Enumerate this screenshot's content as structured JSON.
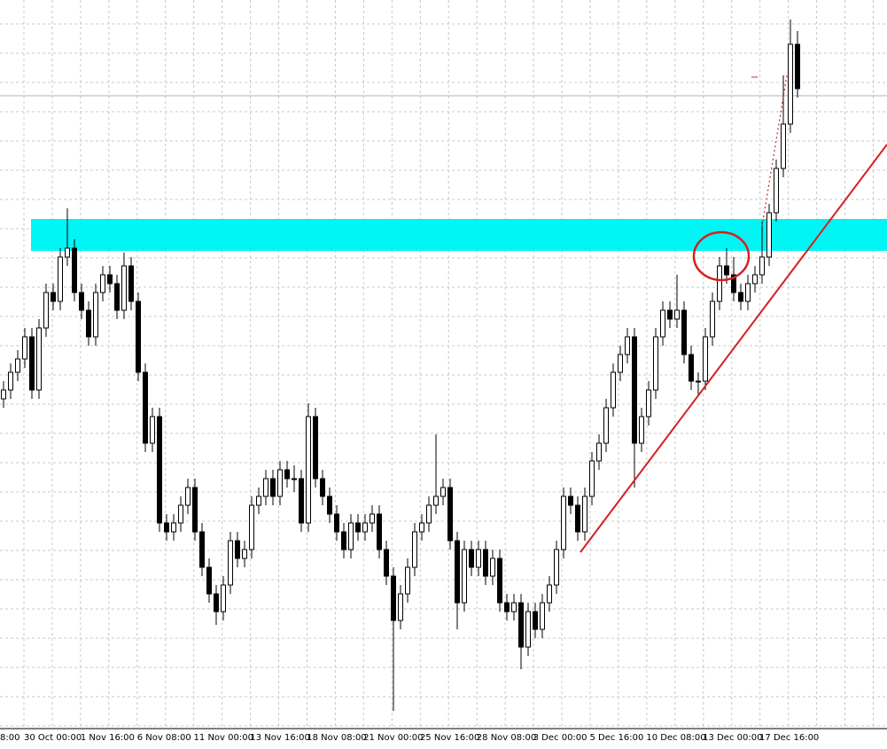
{
  "chart_data": {
    "type": "candlestick",
    "xtick_labels": [
      "8:00",
      "30 Oct 00:00",
      "1 Nov 16:00",
      "6 Nov 08:00",
      "11 Nov 00:00",
      "13 Nov 16:00",
      "18 Nov 08:00",
      "21 Nov 00:00",
      "25 Nov 16:00",
      "28 Nov 08:00",
      "3 Dec 00:00",
      "5 Dec 16:00",
      "10 Dec 08:00",
      "13 Dec 00:00",
      "17 Dec 16:00"
    ],
    "ylim": [
      0,
      820
    ],
    "color": "#000000",
    "candles": [
      [
        370,
        390,
        360,
        380
      ],
      [
        380,
        410,
        370,
        400
      ],
      [
        400,
        425,
        390,
        415
      ],
      [
        415,
        450,
        405,
        440
      ],
      [
        440,
        450,
        370,
        380
      ],
      [
        380,
        460,
        370,
        450
      ],
      [
        450,
        500,
        440,
        490
      ],
      [
        490,
        500,
        470,
        480
      ],
      [
        480,
        540,
        470,
        530
      ],
      [
        530,
        585,
        520,
        540
      ],
      [
        540,
        550,
        480,
        490
      ],
      [
        490,
        500,
        460,
        470
      ],
      [
        470,
        480,
        430,
        440
      ],
      [
        440,
        500,
        430,
        490
      ],
      [
        490,
        520,
        480,
        510
      ],
      [
        510,
        520,
        490,
        500
      ],
      [
        500,
        510,
        460,
        470
      ],
      [
        470,
        535,
        460,
        520
      ],
      [
        520,
        530,
        470,
        480
      ],
      [
        480,
        490,
        390,
        400
      ],
      [
        400,
        410,
        310,
        320
      ],
      [
        320,
        360,
        310,
        350
      ],
      [
        350,
        360,
        220,
        230
      ],
      [
        230,
        240,
        210,
        220
      ],
      [
        220,
        240,
        210,
        230
      ],
      [
        230,
        260,
        220,
        250
      ],
      [
        250,
        280,
        240,
        270
      ],
      [
        270,
        280,
        210,
        220
      ],
      [
        220,
        230,
        170,
        180
      ],
      [
        180,
        190,
        140,
        150
      ],
      [
        150,
        160,
        115,
        130
      ],
      [
        130,
        170,
        120,
        160
      ],
      [
        160,
        220,
        150,
        210
      ],
      [
        210,
        220,
        180,
        190
      ],
      [
        190,
        210,
        180,
        200
      ],
      [
        200,
        260,
        190,
        250
      ],
      [
        250,
        270,
        240,
        260
      ],
      [
        260,
        290,
        250,
        280
      ],
      [
        280,
        290,
        250,
        260
      ],
      [
        260,
        300,
        250,
        290
      ],
      [
        290,
        300,
        270,
        280
      ],
      [
        280,
        295,
        265,
        280
      ],
      [
        280,
        290,
        220,
        230
      ],
      [
        230,
        365,
        220,
        350
      ],
      [
        350,
        360,
        270,
        280
      ],
      [
        280,
        290,
        250,
        260
      ],
      [
        260,
        270,
        230,
        240
      ],
      [
        240,
        250,
        210,
        220
      ],
      [
        220,
        230,
        190,
        200
      ],
      [
        200,
        240,
        190,
        230
      ],
      [
        230,
        240,
        210,
        220
      ],
      [
        220,
        240,
        210,
        230
      ],
      [
        230,
        250,
        220,
        240
      ],
      [
        240,
        250,
        190,
        200
      ],
      [
        200,
        210,
        160,
        170
      ],
      [
        170,
        180,
        18,
        120
      ],
      [
        120,
        160,
        110,
        150
      ],
      [
        150,
        190,
        140,
        180
      ],
      [
        180,
        230,
        170,
        220
      ],
      [
        220,
        240,
        210,
        230
      ],
      [
        230,
        260,
        220,
        250
      ],
      [
        250,
        330,
        240,
        260
      ],
      [
        260,
        280,
        250,
        270
      ],
      [
        270,
        280,
        200,
        210
      ],
      [
        210,
        220,
        110,
        140
      ],
      [
        140,
        210,
        130,
        200
      ],
      [
        200,
        210,
        170,
        180
      ],
      [
        180,
        210,
        170,
        200
      ],
      [
        200,
        210,
        160,
        170
      ],
      [
        170,
        200,
        160,
        190
      ],
      [
        190,
        200,
        130,
        140
      ],
      [
        140,
        150,
        120,
        130
      ],
      [
        130,
        150,
        120,
        140
      ],
      [
        140,
        150,
        65,
        90
      ],
      [
        90,
        140,
        80,
        130
      ],
      [
        130,
        140,
        100,
        110
      ],
      [
        110,
        150,
        100,
        140
      ],
      [
        140,
        170,
        130,
        160
      ],
      [
        160,
        210,
        150,
        200
      ],
      [
        200,
        270,
        190,
        260
      ],
      [
        260,
        270,
        240,
        250
      ],
      [
        250,
        260,
        210,
        220
      ],
      [
        220,
        270,
        210,
        260
      ],
      [
        260,
        310,
        250,
        300
      ],
      [
        300,
        330,
        290,
        320
      ],
      [
        320,
        370,
        310,
        360
      ],
      [
        360,
        410,
        350,
        400
      ],
      [
        400,
        430,
        390,
        420
      ],
      [
        420,
        450,
        410,
        440
      ],
      [
        440,
        450,
        270,
        320
      ],
      [
        320,
        360,
        310,
        350
      ],
      [
        350,
        390,
        340,
        380
      ],
      [
        380,
        450,
        370,
        440
      ],
      [
        440,
        480,
        430,
        470
      ],
      [
        470,
        480,
        450,
        460
      ],
      [
        460,
        510,
        450,
        470
      ],
      [
        470,
        480,
        410,
        420
      ],
      [
        420,
        430,
        380,
        390
      ],
      [
        390,
        400,
        375,
        390
      ],
      [
        390,
        450,
        380,
        440
      ],
      [
        440,
        490,
        430,
        480
      ],
      [
        480,
        530,
        470,
        520
      ],
      [
        520,
        540,
        500,
        510
      ],
      [
        510,
        530,
        480,
        490
      ],
      [
        490,
        500,
        470,
        480
      ],
      [
        480,
        510,
        470,
        500
      ],
      [
        500,
        520,
        490,
        510
      ],
      [
        510,
        570,
        500,
        530
      ],
      [
        530,
        590,
        520,
        580
      ],
      [
        580,
        640,
        570,
        630
      ],
      [
        630,
        735,
        620,
        680
      ],
      [
        680,
        798,
        670,
        770
      ],
      [
        770,
        785,
        710,
        720
      ]
    ]
  }
}
